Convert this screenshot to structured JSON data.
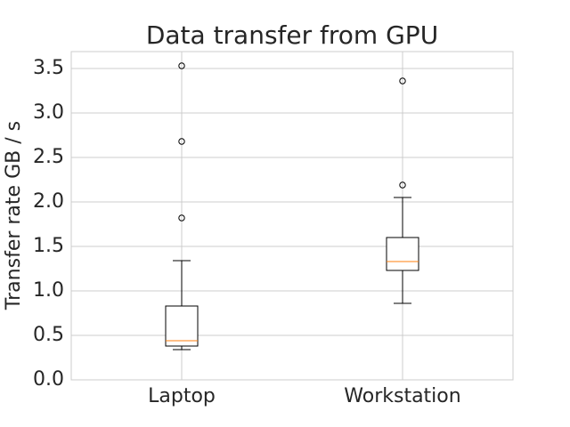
{
  "chart_data": {
    "type": "box",
    "title": "Data transfer from GPU",
    "y_label": "Transfer rate GB / s",
    "categories": [
      "Laptop",
      "Workstation"
    ],
    "boxes": [
      {
        "low": 0.34,
        "q1": 0.38,
        "median": 0.44,
        "q3": 0.83,
        "high": 1.34,
        "outliers": [
          1.82,
          2.68,
          3.53
        ]
      },
      {
        "low": 0.86,
        "q1": 1.23,
        "median": 1.33,
        "q3": 1.6,
        "high": 2.05,
        "outliers": [
          2.19,
          3.36
        ]
      }
    ],
    "box_color": "#000000",
    "median_color": "#ff7f0e",
    "ylim": [
      0,
      3.69
    ],
    "yticks": [
      {
        "value": 0,
        "label": "0.0"
      },
      0.5,
      {
        "value": 1,
        "label": "1.0"
      },
      1.5,
      {
        "value": 2,
        "label": "2.0"
      },
      2.5,
      {
        "value": 3,
        "label": "3.0"
      },
      3.5
    ],
    "grid": true
  }
}
